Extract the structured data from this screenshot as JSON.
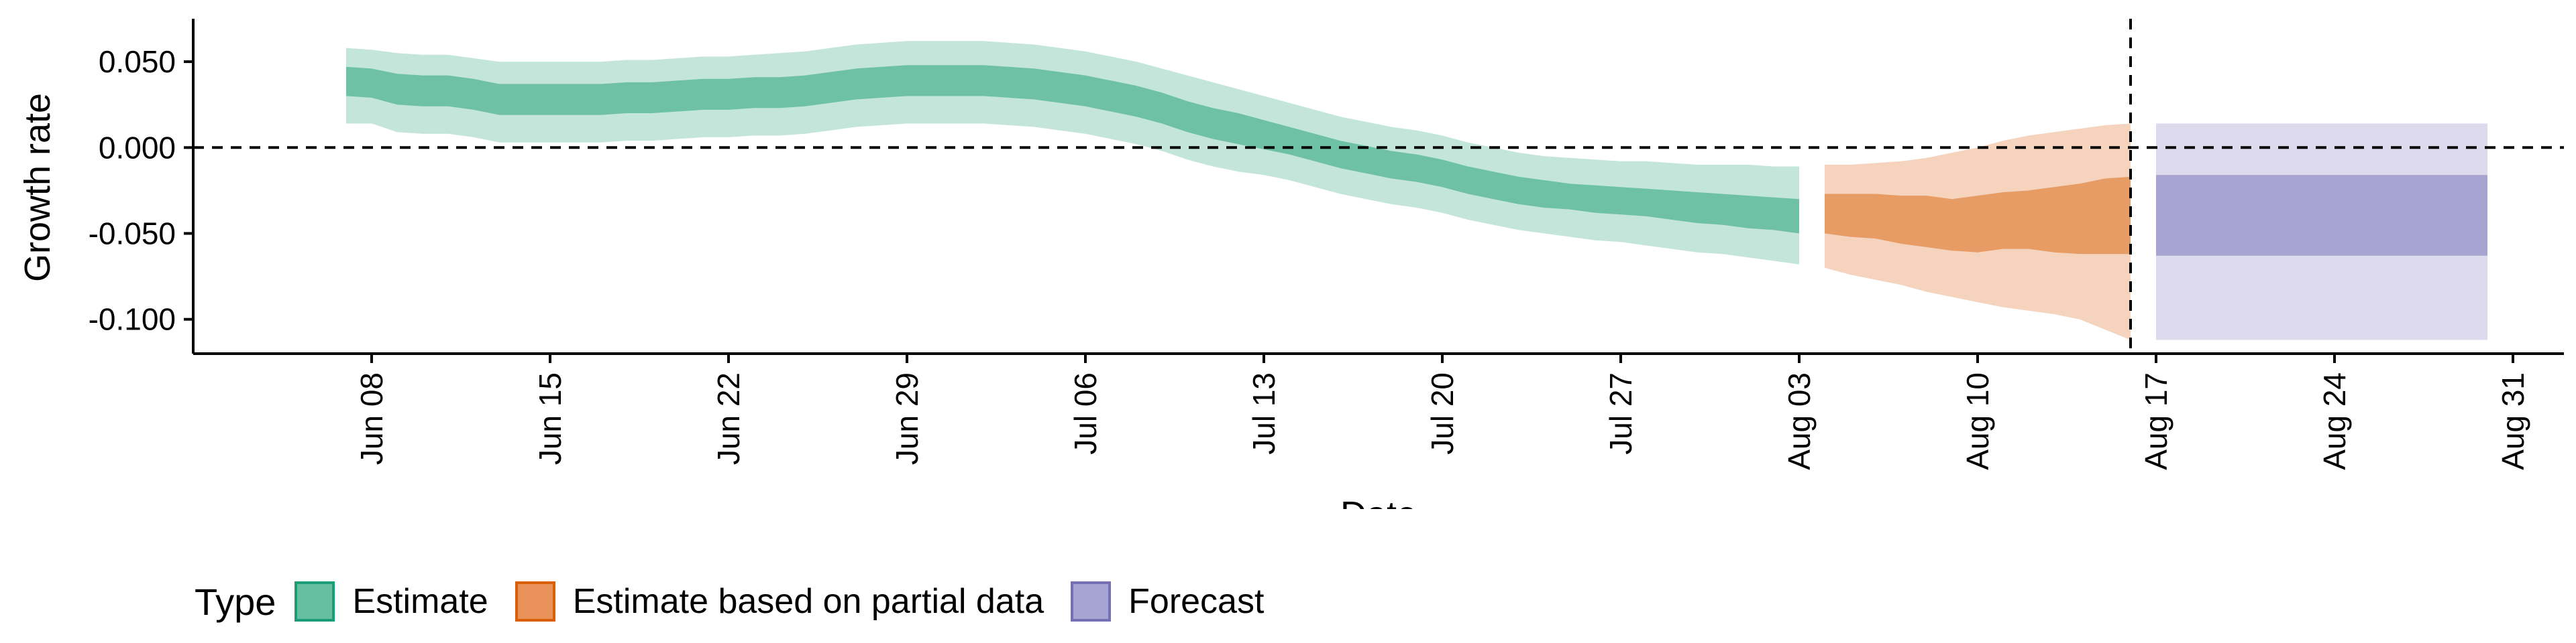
{
  "chart_data": {
    "type": "area",
    "xlabel": "Date",
    "ylabel": "Growth rate",
    "ylim": [
      -0.12,
      0.075
    ],
    "xlim": [
      "2020-06-01",
      "2020-09-02"
    ],
    "y_ticks": [
      "0.050",
      "0.000",
      "-0.050",
      "-0.100"
    ],
    "y_tick_values": [
      0.05,
      0.0,
      -0.05,
      -0.1
    ],
    "x_ticks": [
      "Jun 08",
      "Jun 15",
      "Jun 22",
      "Jun 29",
      "Jul 06",
      "Jul 13",
      "Jul 20",
      "Jul 27",
      "Aug 03",
      "Aug 10",
      "Aug 17",
      "Aug 24",
      "Aug 31"
    ],
    "x_tick_dates": [
      "2020-06-08",
      "2020-06-15",
      "2020-06-22",
      "2020-06-29",
      "2020-07-06",
      "2020-07-13",
      "2020-07-20",
      "2020-07-27",
      "2020-08-03",
      "2020-08-10",
      "2020-08-17",
      "2020-08-24",
      "2020-08-31"
    ],
    "reference_lines": {
      "horizontal_y": 0,
      "vertical_date": "2020-08-16"
    },
    "legend": {
      "title": "Type",
      "placement": "bottom-left"
    },
    "colors": {
      "estimate_fill": "#66bfa0",
      "estimate_border": "#1b9e77",
      "partial_fill": "#e8925a",
      "partial_border": "#d95f02",
      "forecast_fill": "#a7a3d2",
      "forecast_border": "#7570b3"
    },
    "series": [
      {
        "name": "Estimate",
        "fill_90": "#c4e6da",
        "fill_50": "#6fc1a5",
        "dates": [
          "2020-06-07",
          "2020-06-08",
          "2020-06-09",
          "2020-06-10",
          "2020-06-11",
          "2020-06-12",
          "2020-06-13",
          "2020-06-14",
          "2020-06-15",
          "2020-06-16",
          "2020-06-17",
          "2020-06-18",
          "2020-06-19",
          "2020-06-20",
          "2020-06-21",
          "2020-06-22",
          "2020-06-23",
          "2020-06-24",
          "2020-06-25",
          "2020-06-26",
          "2020-06-27",
          "2020-06-28",
          "2020-06-29",
          "2020-06-30",
          "2020-07-01",
          "2020-07-02",
          "2020-07-03",
          "2020-07-04",
          "2020-07-05",
          "2020-07-06",
          "2020-07-07",
          "2020-07-08",
          "2020-07-09",
          "2020-07-10",
          "2020-07-11",
          "2020-07-12",
          "2020-07-13",
          "2020-07-14",
          "2020-07-15",
          "2020-07-16",
          "2020-07-17",
          "2020-07-18",
          "2020-07-19",
          "2020-07-20",
          "2020-07-21",
          "2020-07-22",
          "2020-07-23",
          "2020-07-24",
          "2020-07-25",
          "2020-07-26",
          "2020-07-27",
          "2020-07-28",
          "2020-07-29",
          "2020-07-30",
          "2020-07-31",
          "2020-08-01",
          "2020-08-02",
          "2020-08-03"
        ],
        "lower_90": [
          0.014,
          0.014,
          0.009,
          0.008,
          0.008,
          0.006,
          0.003,
          0.003,
          0.003,
          0.003,
          0.003,
          0.004,
          0.004,
          0.005,
          0.006,
          0.006,
          0.007,
          0.007,
          0.008,
          0.01,
          0.012,
          0.013,
          0.014,
          0.014,
          0.014,
          0.014,
          0.013,
          0.012,
          0.01,
          0.008,
          0.005,
          0.002,
          -0.002,
          -0.007,
          -0.011,
          -0.014,
          -0.016,
          -0.019,
          -0.023,
          -0.027,
          -0.03,
          -0.033,
          -0.035,
          -0.038,
          -0.042,
          -0.045,
          -0.048,
          -0.05,
          -0.052,
          -0.054,
          -0.055,
          -0.057,
          -0.059,
          -0.061,
          -0.062,
          -0.064,
          -0.066,
          -0.068
        ],
        "lower_50": [
          0.03,
          0.029,
          0.025,
          0.024,
          0.024,
          0.022,
          0.019,
          0.019,
          0.019,
          0.019,
          0.019,
          0.02,
          0.02,
          0.021,
          0.022,
          0.022,
          0.023,
          0.023,
          0.024,
          0.026,
          0.028,
          0.029,
          0.03,
          0.03,
          0.03,
          0.03,
          0.029,
          0.028,
          0.026,
          0.024,
          0.021,
          0.018,
          0.014,
          0.009,
          0.005,
          0.002,
          -0.001,
          -0.004,
          -0.008,
          -0.012,
          -0.015,
          -0.018,
          -0.02,
          -0.023,
          -0.027,
          -0.03,
          -0.033,
          -0.035,
          -0.036,
          -0.038,
          -0.039,
          -0.04,
          -0.042,
          -0.044,
          -0.045,
          -0.047,
          -0.048,
          -0.05
        ],
        "upper_50": [
          0.047,
          0.046,
          0.043,
          0.042,
          0.042,
          0.04,
          0.037,
          0.037,
          0.037,
          0.037,
          0.037,
          0.038,
          0.038,
          0.039,
          0.04,
          0.04,
          0.041,
          0.041,
          0.042,
          0.044,
          0.046,
          0.047,
          0.048,
          0.048,
          0.048,
          0.048,
          0.047,
          0.046,
          0.044,
          0.042,
          0.039,
          0.036,
          0.032,
          0.027,
          0.023,
          0.02,
          0.016,
          0.012,
          0.008,
          0.004,
          0.001,
          -0.002,
          -0.004,
          -0.007,
          -0.011,
          -0.014,
          -0.017,
          -0.019,
          -0.021,
          -0.022,
          -0.023,
          -0.024,
          -0.025,
          -0.026,
          -0.027,
          -0.028,
          -0.029,
          -0.03
        ],
        "upper_90": [
          0.058,
          0.057,
          0.055,
          0.054,
          0.054,
          0.052,
          0.05,
          0.05,
          0.05,
          0.05,
          0.05,
          0.051,
          0.051,
          0.052,
          0.053,
          0.053,
          0.054,
          0.055,
          0.056,
          0.058,
          0.06,
          0.061,
          0.062,
          0.062,
          0.062,
          0.062,
          0.061,
          0.06,
          0.058,
          0.056,
          0.053,
          0.05,
          0.046,
          0.042,
          0.038,
          0.034,
          0.03,
          0.026,
          0.022,
          0.018,
          0.015,
          0.012,
          0.01,
          0.007,
          0.003,
          0.0,
          -0.003,
          -0.005,
          -0.006,
          -0.007,
          -0.008,
          -0.008,
          -0.009,
          -0.01,
          -0.01,
          -0.01,
          -0.011,
          -0.011
        ]
      },
      {
        "name": "Estimate based on partial data",
        "fill_90": "#f5d3bd",
        "fill_50": "#e89c65",
        "dates": [
          "2020-08-04",
          "2020-08-05",
          "2020-08-06",
          "2020-08-07",
          "2020-08-08",
          "2020-08-09",
          "2020-08-10",
          "2020-08-11",
          "2020-08-12",
          "2020-08-13",
          "2020-08-14",
          "2020-08-15",
          "2020-08-16"
        ],
        "lower_90": [
          -0.07,
          -0.074,
          -0.077,
          -0.08,
          -0.084,
          -0.087,
          -0.09,
          -0.093,
          -0.095,
          -0.097,
          -0.1,
          -0.106,
          -0.112
        ],
        "lower_50": [
          -0.05,
          -0.052,
          -0.053,
          -0.056,
          -0.058,
          -0.06,
          -0.061,
          -0.059,
          -0.059,
          -0.061,
          -0.062,
          -0.062,
          -0.062
        ],
        "upper_50": [
          -0.027,
          -0.027,
          -0.027,
          -0.028,
          -0.028,
          -0.03,
          -0.028,
          -0.026,
          -0.025,
          -0.023,
          -0.021,
          -0.018,
          -0.017
        ],
        "upper_90": [
          -0.01,
          -0.01,
          -0.009,
          -0.008,
          -0.006,
          -0.003,
          0.0,
          0.004,
          0.007,
          0.009,
          0.011,
          0.013,
          0.014
        ]
      },
      {
        "name": "Forecast",
        "fill_90": "#dcdaec",
        "fill_50": "#a8a4d2",
        "dates": [
          "2020-08-17",
          "2020-08-30"
        ],
        "lower_90": [
          -0.112,
          -0.112
        ],
        "lower_50": [
          -0.063,
          -0.063
        ],
        "upper_50": [
          -0.016,
          -0.016
        ],
        "upper_90": [
          0.014,
          0.014
        ]
      }
    ]
  }
}
